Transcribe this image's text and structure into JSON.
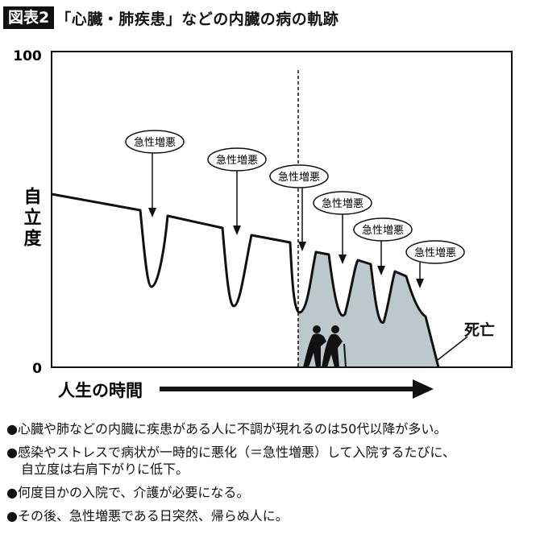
{
  "header": {
    "badge": "図表2",
    "title": "「心臓・肺疾患」などの内臓の病の軌跡"
  },
  "chart": {
    "y_label": "自立度",
    "y_max": "100",
    "y_min": "0",
    "x_label": "人生の時間",
    "event_label": "急性増悪",
    "end_label": "死亡"
  },
  "notes": [
    "●心臓や肺などの内臓に疾患がある人に不調が現れるのは50代以降が多い。",
    "●感染やストレスで病状が一時的に悪化（＝急性増悪）して入院するたびに、",
    "自立度は右肩下がりに低下。",
    "●何度目かの入院で、介護が必要になる。",
    "●その後、急性増悪である日突然、帰らぬ人に。"
  ],
  "colors": {
    "care_fill": "#bcc8cc",
    "ink": "#111111"
  }
}
